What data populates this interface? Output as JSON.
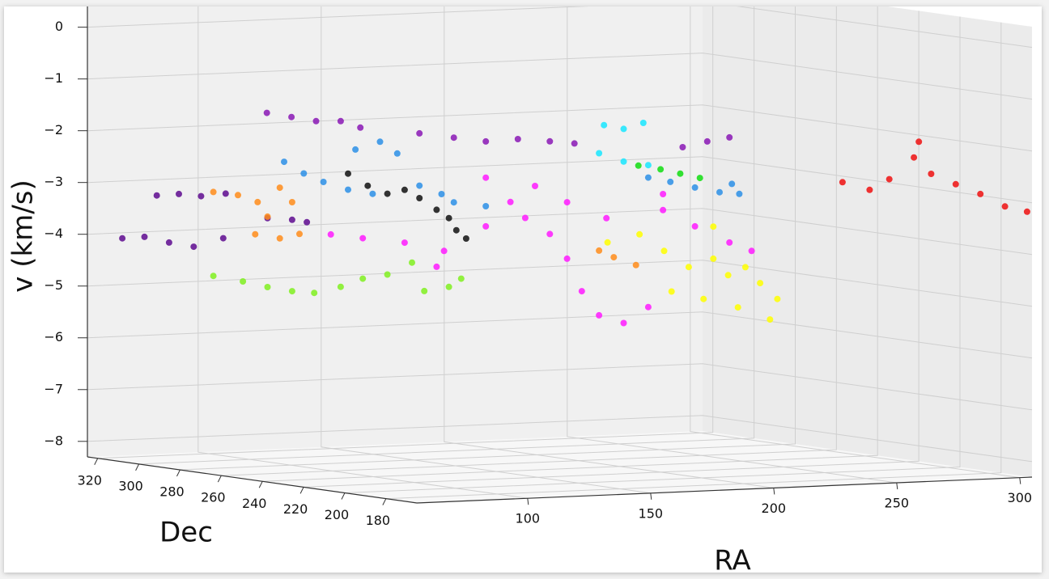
{
  "chart_data": {
    "type": "scatter3d",
    "x_label": "RA",
    "y_label": "Dec",
    "z_label": "v (km/s)",
    "xlim": [
      55,
      305
    ],
    "xticks": [
      100,
      150,
      200,
      250,
      300
    ],
    "ylim": [
      325,
      165
    ],
    "yticks": [
      320,
      300,
      280,
      260,
      240,
      220,
      200,
      180
    ],
    "zlim": [
      -8.3,
      0.4
    ],
    "zticks": [
      0,
      {
        "value": -1,
        "label": "−1"
      },
      {
        "value": -2,
        "label": "−2"
      },
      {
        "value": -3,
        "label": "−3"
      },
      {
        "value": -4,
        "label": "−4"
      },
      {
        "value": -5,
        "label": "−5"
      },
      {
        "value": -6,
        "label": "−6"
      },
      {
        "value": -7,
        "label": "−7"
      },
      {
        "value": -8,
        "label": "−8"
      }
    ],
    "grid": true,
    "series": [
      {
        "color": "#8a17b5",
        "x": [
          107,
          117,
          127,
          137,
          145,
          169,
          183,
          196,
          209,
          222,
          232,
          276,
          286,
          295
        ],
        "y": [
          300,
          300,
          300,
          300,
          300,
          300,
          300,
          300,
          300,
          300,
          300,
          300,
          300,
          300
        ],
        "values": [
          -1.62,
          -1.72,
          -1.82,
          -1.84,
          -1.98,
          -2.14,
          -2.25,
          -2.35,
          -2.33,
          -2.4,
          -2.46,
          -2.62,
          -2.53,
          -2.47
        ]
      },
      {
        "color": "#5e0a8f",
        "x": [
          79,
          88,
          97,
          107,
          124,
          134,
          140,
          65,
          74,
          84,
          94,
          106
        ],
        "y": [
          320,
          320,
          320,
          320,
          320,
          320,
          320,
          320,
          320,
          320,
          320,
          320
        ],
        "values": [
          -3.27,
          -3.26,
          -3.32,
          -3.29,
          -3.8,
          -3.85,
          -3.91,
          -4.07,
          -4.06,
          -4.19,
          -4.29,
          -4.15
        ]
      },
      {
        "color": "#2b8fe6",
        "x": [
          114,
          122,
          130,
          140,
          150,
          160,
          169,
          178,
          183,
          196,
          262,
          271,
          281,
          291,
          296,
          299,
          143,
          153
        ],
        "y": [
          300,
          300,
          300,
          300,
          300,
          300,
          300,
          300,
          300,
          300,
          300,
          300,
          300,
          300,
          300,
          300,
          300,
          300
        ],
        "values": [
          -2.58,
          -2.82,
          -3.0,
          -3.17,
          -3.27,
          -2.51,
          -3.15,
          -3.33,
          -3.5,
          -3.6,
          -3.18,
          -3.28,
          -3.41,
          -3.52,
          -3.37,
          -3.57,
          -2.4,
          -2.27
        ]
      },
      {
        "color": "#111111",
        "x": [
          140,
          148,
          156,
          163,
          169,
          176,
          181,
          184,
          188
        ],
        "y": [
          300,
          300,
          300,
          300,
          300,
          300,
          300,
          300,
          300
        ],
        "values": [
          -2.86,
          -3.11,
          -3.28,
          -3.22,
          -3.39,
          -3.63,
          -3.8,
          -4.04,
          -4.21
        ]
      },
      {
        "color": "#ff8c1a",
        "x": [
          102,
          112,
          120,
          129,
          134,
          124,
          119,
          129,
          137,
          242,
          248,
          257
        ],
        "y": [
          320,
          320,
          320,
          320,
          320,
          320,
          320,
          320,
          320,
          300,
          300,
          300
        ],
        "values": [
          -3.25,
          -3.33,
          -3.48,
          -3.22,
          -3.51,
          -3.77,
          -4.1,
          -4.2,
          -4.13,
          -4.55,
          -4.69,
          -4.86
        ]
      },
      {
        "color": "#80f020",
        "x": [
          102,
          114,
          124,
          134,
          143,
          137,
          146,
          156,
          166,
          171,
          181,
          186
        ],
        "y": [
          320,
          320,
          320,
          320,
          320,
          300,
          300,
          300,
          300,
          300,
          300,
          300
        ],
        "values": [
          -4.87,
          -5.0,
          -5.13,
          -5.23,
          -5.28,
          -5.04,
          -4.9,
          -4.84,
          -4.63,
          -5.19,
          -5.13,
          -4.98
        ]
      },
      {
        "color": "#ff1aff",
        "x": [
          133,
          146,
          163,
          179,
          196,
          206,
          212,
          222,
          229,
          235,
          242,
          252,
          262,
          216,
          196,
          229,
          245,
          268,
          281,
          295,
          304,
          268,
          176
        ],
        "y": [
          300,
          300,
          300,
          300,
          300,
          300,
          300,
          300,
          300,
          300,
          300,
          300,
          300,
          300,
          300,
          300,
          300,
          300,
          300,
          300,
          300,
          300,
          300
        ],
        "values": [
          -4.02,
          -4.12,
          -4.24,
          -4.43,
          -3.99,
          -3.54,
          -3.86,
          -4.19,
          -4.68,
          -5.32,
          -5.8,
          -5.97,
          -5.68,
          -3.25,
          -3.05,
          -3.59,
          -3.93,
          -3.82,
          -4.16,
          -4.5,
          -4.68,
          -3.51,
          -4.73
        ]
      },
      {
        "color": "#ffff00",
        "x": [
          212,
          225,
          235,
          245,
          255,
          261,
          268,
          274,
          281,
          238,
          251,
          265,
          278,
          255
        ],
        "y": [
          260,
          260,
          260,
          260,
          260,
          260,
          260,
          260,
          260,
          260,
          260,
          260,
          260,
          260
        ],
        "values": [
          -4.11,
          -3.98,
          -4.32,
          -4.65,
          -4.51,
          -4.84,
          -4.7,
          -5.02,
          -5.34,
          -5.11,
          -5.28,
          -5.47,
          -5.73,
          -3.89
        ]
      },
      {
        "color": "#18e6ff",
        "x": [
          244,
          252,
          260,
          242,
          252,
          262
        ],
        "y": [
          300,
          300,
          300,
          300,
          300,
          300
        ],
        "values": [
          -2.13,
          -2.22,
          -2.12,
          -2.67,
          -2.85,
          -2.94
        ]
      },
      {
        "color": "#11dd11",
        "x": [
          258,
          267,
          275,
          283
        ],
        "y": [
          300,
          300,
          300,
          300
        ],
        "values": [
          -2.94,
          -3.03,
          -3.13,
          -3.23
        ]
      },
      {
        "color": "#ee1111",
        "x": [
          228,
          239,
          247,
          257,
          259,
          264,
          274,
          284,
          294,
          303
        ],
        "y": [
          165,
          165,
          165,
          165,
          165,
          165,
          165,
          165,
          165,
          165
        ],
        "values": [
          -2.45,
          -2.62,
          -2.43,
          -2.03,
          -1.73,
          -2.36,
          -2.58,
          -2.79,
          -3.05,
          -3.17
        ]
      }
    ]
  }
}
